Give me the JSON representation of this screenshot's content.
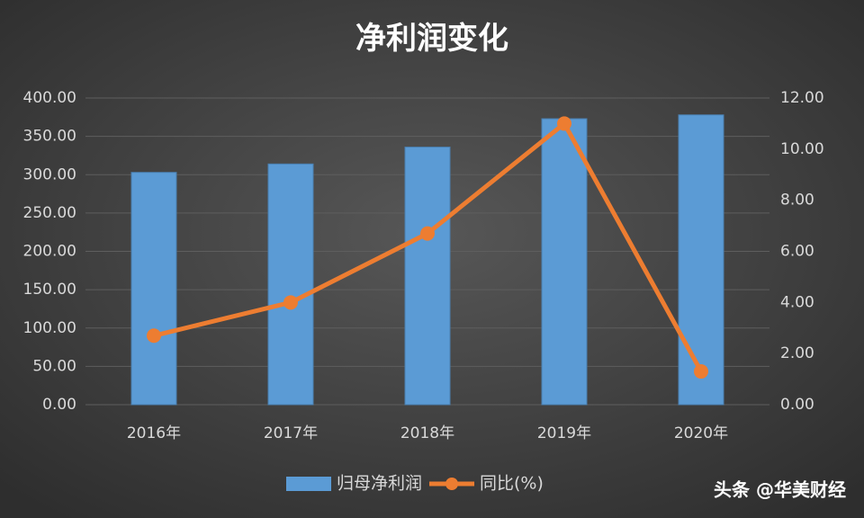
{
  "chart_data": {
    "type": "bar",
    "title": "净利润变化",
    "categories": [
      "2016年",
      "2017年",
      "2018年",
      "2019年",
      "2020年"
    ],
    "series": [
      {
        "name": "归母净利润",
        "type": "bar",
        "color": "#5b9bd5",
        "values": [
          303,
          314,
          336,
          373,
          378
        ]
      },
      {
        "name": "同比(%)",
        "type": "line",
        "axis": "y2",
        "color": "#ed7d31",
        "values": [
          2.7,
          4.0,
          6.7,
          11.0,
          1.3
        ]
      }
    ],
    "ylim": [
      0,
      400
    ],
    "yticks": [
      {
        "value": 0,
        "label": "0.00"
      },
      {
        "value": 50,
        "label": "50.00"
      },
      {
        "value": 100,
        "label": "100.00"
      },
      {
        "value": 150,
        "label": "150.00"
      },
      {
        "value": 200,
        "label": "200.00"
      },
      {
        "value": 250,
        "label": "250.00"
      },
      {
        "value": 300,
        "label": "300.00"
      },
      {
        "value": 350,
        "label": "350.00"
      },
      {
        "value": 400,
        "label": "400.00"
      }
    ],
    "y2lim": [
      0,
      12
    ],
    "y2ticks": [
      {
        "value": 0,
        "label": "0.00"
      },
      {
        "value": 2,
        "label": "2.00"
      },
      {
        "value": 4,
        "label": "4.00"
      },
      {
        "value": 6,
        "label": "6.00"
      },
      {
        "value": 8,
        "label": "8.00"
      },
      {
        "value": 10,
        "label": "10.00"
      },
      {
        "value": 12,
        "label": "12.00"
      }
    ],
    "grid": true,
    "legend": "bottom",
    "watermark": "头条 @华美财经"
  }
}
